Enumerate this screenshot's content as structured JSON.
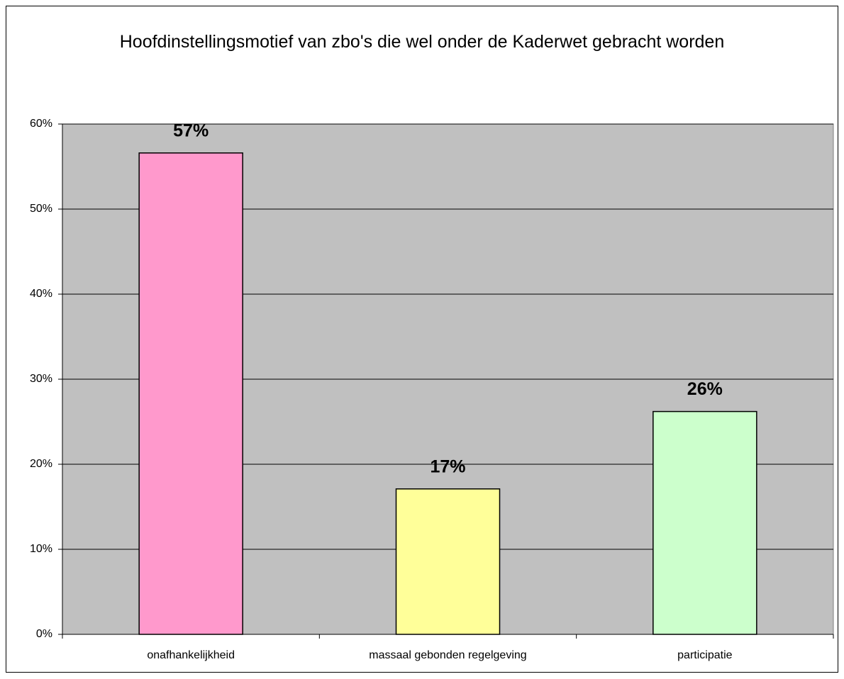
{
  "chart_data": {
    "type": "bar",
    "title": "Hoofdinstellingsmotief van zbo's die wel onder de Kaderwet gebracht worden",
    "categories": [
      "onafhankelijkheid",
      "massaal gebonden regelgeving",
      "participatie"
    ],
    "values": [
      56.6,
      17.1,
      26.2
    ],
    "value_labels": [
      "57%",
      "17%",
      "26%"
    ],
    "colors": [
      "#ff99cc",
      "#ffff99",
      "#ccffcc"
    ],
    "ylim": [
      0,
      60
    ],
    "yticks": [
      {
        "value": 0,
        "label": "0%"
      },
      {
        "value": 10,
        "label": "10%"
      },
      {
        "value": 20,
        "label": "20%"
      },
      {
        "value": 30,
        "label": "30%"
      },
      {
        "value": 40,
        "label": "40%"
      },
      {
        "value": 50,
        "label": "50%"
      },
      {
        "value": 60,
        "label": "60%"
      }
    ],
    "grid": true,
    "plot_background": "#c0c0c0"
  }
}
